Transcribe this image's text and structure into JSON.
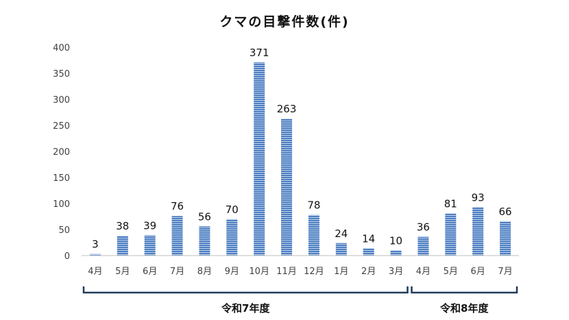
{
  "chart_data": {
    "type": "bar",
    "title": "クマの目撃件数(件)",
    "categories": [
      "4月",
      "5月",
      "6月",
      "7月",
      "8月",
      "9月",
      "10月",
      "11月",
      "12月",
      "1月",
      "2月",
      "3月",
      "4月",
      "5月",
      "6月",
      "7月"
    ],
    "values": [
      3,
      38,
      39,
      76,
      56,
      70,
      371,
      263,
      78,
      24,
      14,
      10,
      36,
      81,
      93,
      66
    ],
    "ylim": [
      0,
      400
    ],
    "yticks": [
      0,
      50,
      100,
      150,
      200,
      250,
      300,
      350,
      400
    ],
    "grid": false,
    "legend": "none",
    "highlight_index": 6,
    "groups": [
      {
        "label": "令和7年度",
        "from": 0,
        "to": 11
      },
      {
        "label": "令和8年度",
        "from": 12,
        "to": 15
      }
    ]
  },
  "colors": {
    "bar": "#4a7cc0",
    "bar_stripe": "#c5d7ee",
    "highlight_label": "#e02020",
    "bracket": "#1f3a5a",
    "axis": "#bfbfbf"
  }
}
